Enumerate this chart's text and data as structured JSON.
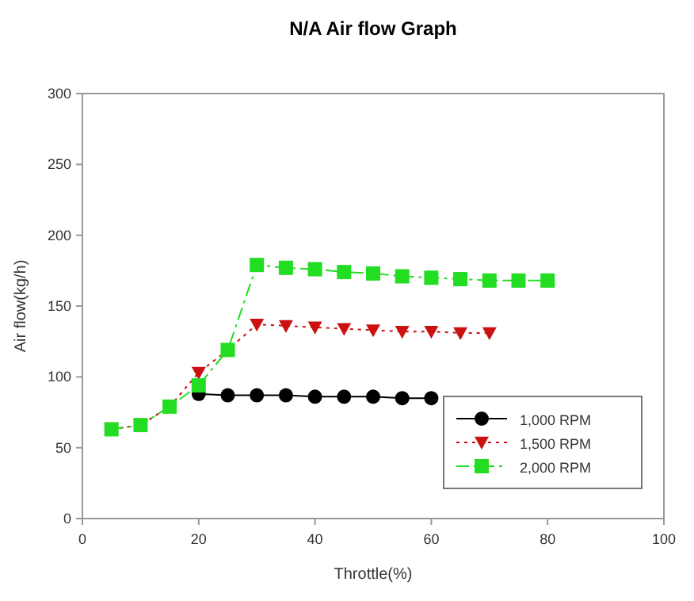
{
  "chart_data": {
    "type": "line",
    "title": "N/A Air flow Graph",
    "xlabel": "Throttle(%)",
    "ylabel": "Air flow(kg/h)",
    "xlim": [
      0,
      100
    ],
    "xticks": [
      0,
      20,
      40,
      60,
      80,
      100
    ],
    "ylim": [
      0,
      300
    ],
    "yticks": [
      0,
      50,
      100,
      150,
      200,
      250,
      300
    ],
    "legend": "bottom right",
    "series": [
      {
        "name": "1,000 RPM",
        "color": "#000000",
        "marker": "circle",
        "line_style": "solid",
        "x": [
          20,
          25,
          30,
          35,
          40,
          45,
          50,
          55,
          60
        ],
        "values": [
          88,
          87,
          87,
          87,
          86,
          86,
          86,
          85,
          85
        ]
      },
      {
        "name": "1,500 RPM",
        "color": "#cc1111",
        "marker": "triangle",
        "line_style": "dotted",
        "x": [
          5,
          10,
          15,
          20,
          25,
          30,
          35,
          40,
          45,
          50,
          55,
          60,
          65,
          70
        ],
        "values": [
          63,
          66,
          79,
          103,
          119,
          137,
          136,
          135,
          134,
          133,
          132,
          132,
          131,
          131
        ]
      },
      {
        "name": "2,000 RPM",
        "color": "#22dd22",
        "marker": "square",
        "line_style": "dashed",
        "x": [
          5,
          10,
          15,
          20,
          25,
          30,
          35,
          40,
          45,
          50,
          55,
          60,
          65,
          70,
          75,
          80
        ],
        "values": [
          63,
          66,
          79,
          94,
          119,
          179,
          177,
          176,
          174,
          173,
          171,
          170,
          169,
          168,
          168,
          168
        ]
      }
    ]
  }
}
